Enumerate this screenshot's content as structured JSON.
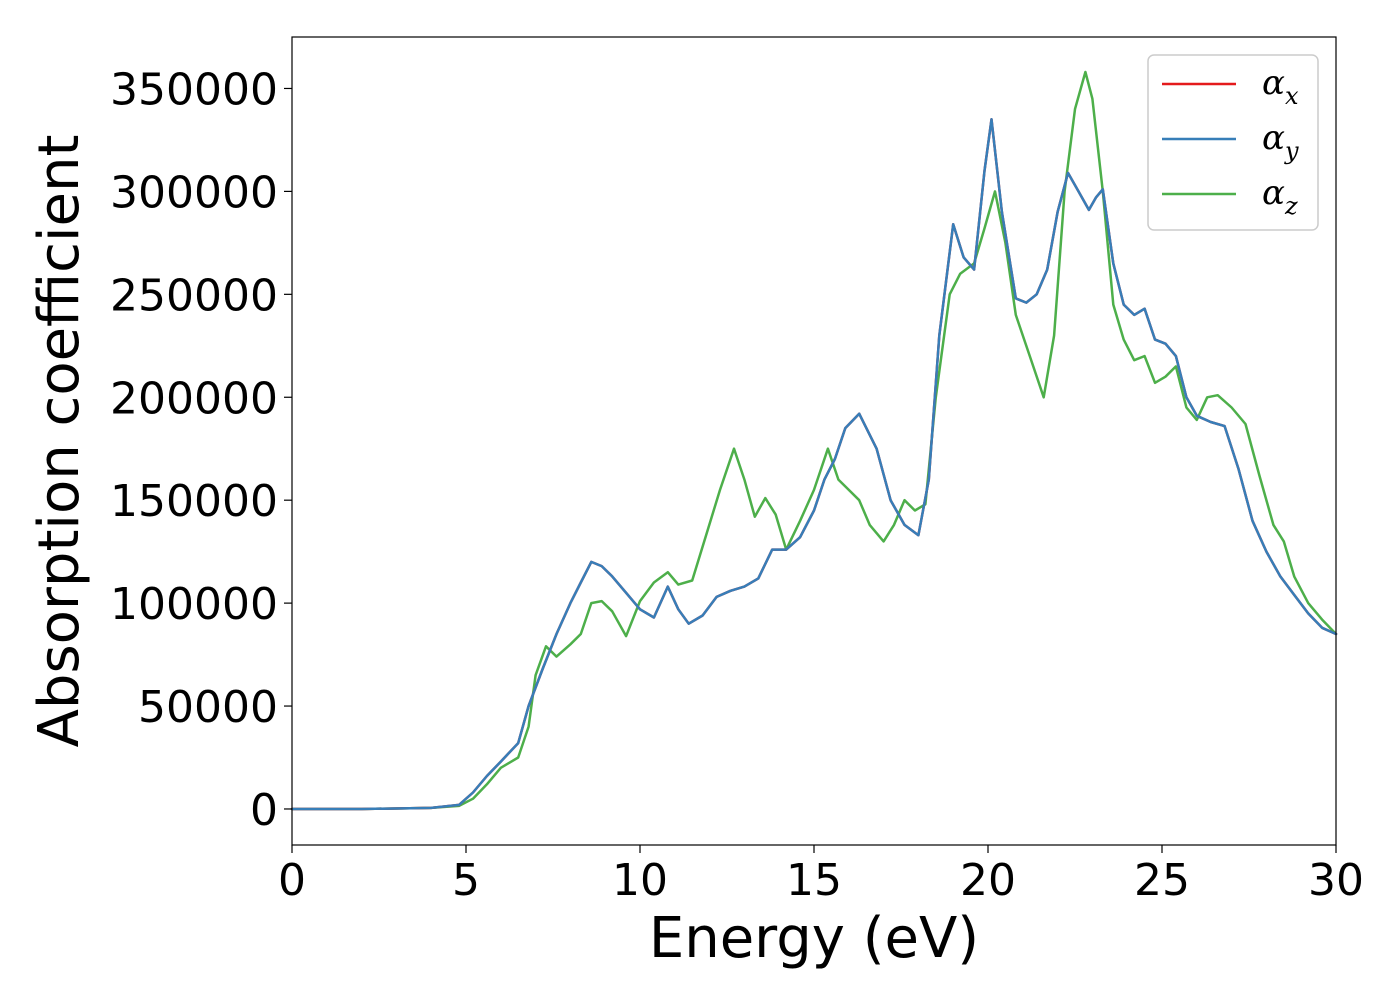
{
  "chart_data": {
    "type": "line",
    "title": "",
    "xlabel": "Energy (eV)",
    "ylabel": "Absorption coefficient",
    "xlim": [
      0,
      30
    ],
    "ylim": [
      -17500,
      375000
    ],
    "xticks": [
      0,
      5,
      10,
      15,
      20,
      25,
      30
    ],
    "xtick_labels": [
      "0",
      "5",
      "10",
      "15",
      "20",
      "25",
      "30"
    ],
    "yticks": [
      0,
      50000,
      100000,
      150000,
      200000,
      250000,
      300000,
      350000
    ],
    "ytick_labels": [
      "0",
      "50000",
      "100000",
      "150000",
      "200000",
      "250000",
      "300000",
      "350000"
    ],
    "grid": false,
    "legend_position": "top-right",
    "series": [
      {
        "name": "α",
        "sub": "x",
        "color": "#e41a1c",
        "x": [
          0,
          2,
          4,
          4.8,
          5.2,
          5.6,
          6.0,
          6.5,
          6.8,
          7.2,
          7.6,
          8.0,
          8.3,
          8.6,
          8.9,
          9.2,
          9.6,
          10.0,
          10.4,
          10.8,
          11.1,
          11.4,
          11.8,
          12.2,
          12.6,
          13.0,
          13.4,
          13.8,
          14.2,
          14.6,
          15.0,
          15.3,
          15.6,
          15.9,
          16.3,
          16.8,
          17.2,
          17.6,
          18.0,
          18.3,
          18.6,
          19.0,
          19.3,
          19.6,
          19.9,
          20.1,
          20.4,
          20.8,
          21.1,
          21.4,
          21.7,
          22.0,
          22.3,
          22.6,
          22.9,
          23.1,
          23.3,
          23.6,
          23.9,
          24.2,
          24.5,
          24.8,
          25.1,
          25.4,
          25.7,
          26.0,
          26.4,
          26.8,
          27.2,
          27.6,
          28.0,
          28.4,
          28.8,
          29.2,
          29.6,
          30.0
        ],
        "y": [
          0,
          0,
          500,
          2000,
          8000,
          16000,
          23000,
          32000,
          50000,
          68000,
          85000,
          100000,
          110000,
          120000,
          118000,
          113000,
          105000,
          97000,
          93000,
          108000,
          97000,
          90000,
          94000,
          103000,
          106000,
          108000,
          112000,
          126000,
          126000,
          132000,
          145000,
          160000,
          170000,
          185000,
          192000,
          175000,
          150000,
          138000,
          133000,
          160000,
          230000,
          284000,
          268000,
          262000,
          310000,
          335000,
          290000,
          248000,
          246000,
          250000,
          262000,
          290000,
          309000,
          300000,
          291000,
          297000,
          301000,
          265000,
          245000,
          240000,
          243000,
          228000,
          226000,
          220000,
          200000,
          191000,
          188000,
          186000,
          165000,
          140000,
          125000,
          113000,
          104000,
          95000,
          88000,
          85000
        ]
      },
      {
        "name": "α",
        "sub": "y",
        "color": "#377eb8",
        "x": [
          0,
          2,
          4,
          4.8,
          5.2,
          5.6,
          6.0,
          6.5,
          6.8,
          7.2,
          7.6,
          8.0,
          8.3,
          8.6,
          8.9,
          9.2,
          9.6,
          10.0,
          10.4,
          10.8,
          11.1,
          11.4,
          11.8,
          12.2,
          12.6,
          13.0,
          13.4,
          13.8,
          14.2,
          14.6,
          15.0,
          15.3,
          15.6,
          15.9,
          16.3,
          16.8,
          17.2,
          17.6,
          18.0,
          18.3,
          18.6,
          19.0,
          19.3,
          19.6,
          19.9,
          20.1,
          20.4,
          20.8,
          21.1,
          21.4,
          21.7,
          22.0,
          22.3,
          22.6,
          22.9,
          23.1,
          23.3,
          23.6,
          23.9,
          24.2,
          24.5,
          24.8,
          25.1,
          25.4,
          25.7,
          26.0,
          26.4,
          26.8,
          27.2,
          27.6,
          28.0,
          28.4,
          28.8,
          29.2,
          29.6,
          30.0
        ],
        "y": [
          0,
          0,
          500,
          2000,
          8000,
          16000,
          23000,
          32000,
          50000,
          68000,
          85000,
          100000,
          110000,
          120000,
          118000,
          113000,
          105000,
          97000,
          93000,
          108000,
          97000,
          90000,
          94000,
          103000,
          106000,
          108000,
          112000,
          126000,
          126000,
          132000,
          145000,
          160000,
          170000,
          185000,
          192000,
          175000,
          150000,
          138000,
          133000,
          160000,
          230000,
          284000,
          268000,
          262000,
          310000,
          335000,
          290000,
          248000,
          246000,
          250000,
          262000,
          290000,
          309000,
          300000,
          291000,
          297000,
          301000,
          265000,
          245000,
          240000,
          243000,
          228000,
          226000,
          220000,
          200000,
          191000,
          188000,
          186000,
          165000,
          140000,
          125000,
          113000,
          104000,
          95000,
          88000,
          85000
        ]
      },
      {
        "name": "α",
        "sub": "z",
        "color": "#4daf4a",
        "x": [
          0,
          2,
          4,
          4.8,
          5.2,
          5.6,
          6.0,
          6.5,
          6.8,
          7.0,
          7.3,
          7.6,
          8.0,
          8.3,
          8.6,
          8.9,
          9.2,
          9.6,
          10.0,
          10.4,
          10.8,
          11.1,
          11.5,
          11.9,
          12.3,
          12.7,
          13.0,
          13.3,
          13.6,
          13.9,
          14.2,
          14.6,
          15.0,
          15.4,
          15.7,
          16.0,
          16.3,
          16.6,
          17.0,
          17.3,
          17.6,
          17.9,
          18.2,
          18.5,
          18.9,
          19.2,
          19.6,
          19.9,
          20.2,
          20.5,
          20.8,
          21.2,
          21.6,
          21.9,
          22.2,
          22.5,
          22.8,
          23.0,
          23.3,
          23.6,
          23.9,
          24.2,
          24.5,
          24.8,
          25.1,
          25.4,
          25.7,
          26.0,
          26.3,
          26.6,
          27.0,
          27.4,
          27.8,
          28.2,
          28.5,
          28.8,
          29.2,
          29.6,
          30.0
        ],
        "y": [
          0,
          0,
          500,
          1500,
          5000,
          12000,
          20000,
          25000,
          40000,
          65000,
          79000,
          74000,
          80000,
          85000,
          100000,
          101000,
          96000,
          84000,
          101000,
          110000,
          115000,
          109000,
          111000,
          133000,
          155000,
          175000,
          160000,
          142000,
          151000,
          143000,
          126000,
          140000,
          155000,
          175000,
          160000,
          155000,
          150000,
          138000,
          130000,
          138000,
          150000,
          145000,
          148000,
          200000,
          250000,
          260000,
          265000,
          282000,
          300000,
          275000,
          240000,
          220000,
          200000,
          230000,
          300000,
          340000,
          358000,
          345000,
          300000,
          245000,
          228000,
          218000,
          220000,
          207000,
          210000,
          215000,
          195000,
          189000,
          200000,
          201000,
          195000,
          187000,
          162000,
          138000,
          130000,
          113000,
          100000,
          92000,
          85000
        ]
      }
    ]
  }
}
